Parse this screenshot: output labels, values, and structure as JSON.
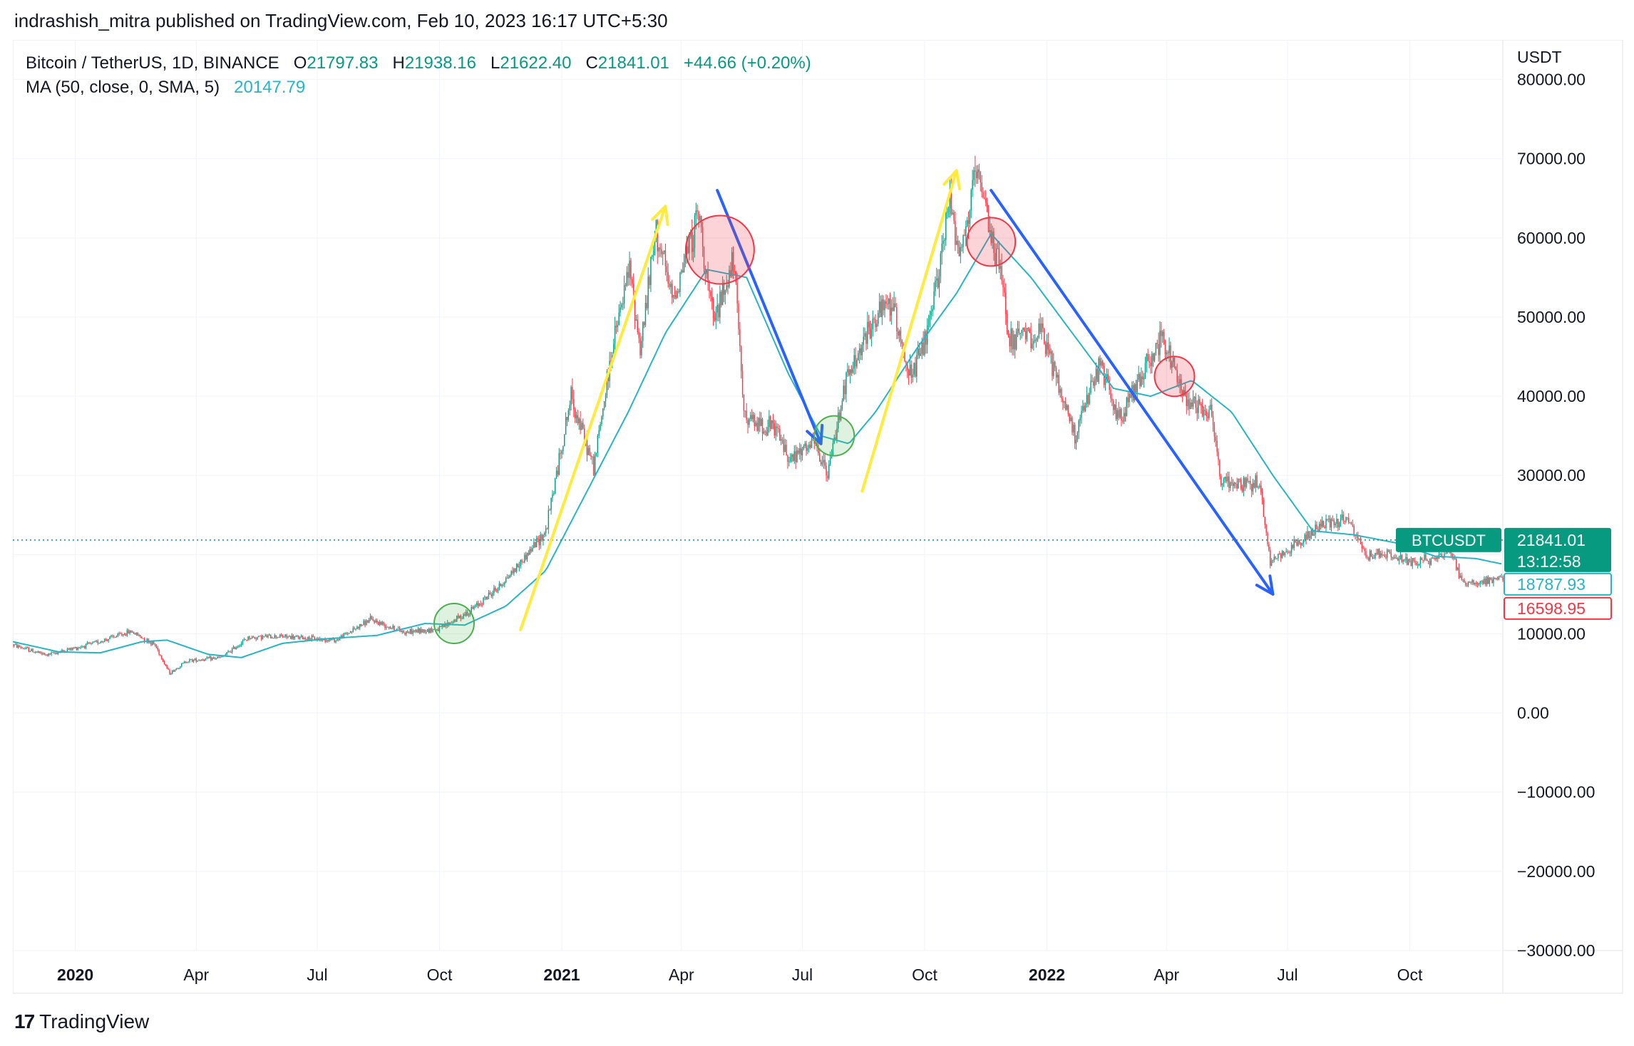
{
  "caption": "indrashish_mitra published on TradingView.com, Feb 10, 2023 16:17 UTC+5:30",
  "footer": {
    "brand": "TradingView",
    "logo_mark": "17"
  },
  "legend": {
    "symbol": "Bitcoin / TetherUS, 1D, BINANCE",
    "open_label": "O",
    "open": "21797.83",
    "high_label": "H",
    "high": "21938.16",
    "low_label": "L",
    "low": "21622.40",
    "close_label": "C",
    "close": "21841.01",
    "change": "+44.66 (+0.20%)",
    "ma_label": "MA (50, close, 0, SMA, 5)",
    "ma_value": "20147.79"
  },
  "colors": {
    "up": "#089981",
    "down": "#f23645",
    "ma": "#26b5c6",
    "yellow_arrow": "#ffeb3b",
    "blue_arrow": "#2962ff"
  },
  "chart_data": {
    "type": "candlestick",
    "currency": "USDT",
    "ylim": [
      -30000,
      85000
    ],
    "yticks": [
      80000,
      70000,
      60000,
      50000,
      40000,
      30000,
      20000,
      10000,
      0,
      -10000,
      -20000,
      -30000
    ],
    "ytick_labels": [
      "80000.00",
      "70000.00",
      "60000.00",
      "50000.00",
      "40000.00",
      "30000.00",
      "20000.00",
      "10000.00",
      "0.00",
      "−10000.00",
      "−20000.00",
      "−30000.00"
    ],
    "xlim": [
      "2019-11-15",
      "2022-12-10"
    ],
    "xticks": [
      {
        "date": "2020-01-01",
        "label": "2020",
        "bold": true
      },
      {
        "date": "2020-04-01",
        "label": "Apr",
        "bold": false
      },
      {
        "date": "2020-07-01",
        "label": "Jul",
        "bold": false
      },
      {
        "date": "2020-10-01",
        "label": "Oct",
        "bold": false
      },
      {
        "date": "2021-01-01",
        "label": "2021",
        "bold": true
      },
      {
        "date": "2021-04-01",
        "label": "Apr",
        "bold": false
      },
      {
        "date": "2021-07-01",
        "label": "Jul",
        "bold": false
      },
      {
        "date": "2021-10-01",
        "label": "Oct",
        "bold": false
      },
      {
        "date": "2022-01-01",
        "label": "2022",
        "bold": true
      },
      {
        "date": "2022-04-01",
        "label": "Apr",
        "bold": false
      },
      {
        "date": "2022-07-01",
        "label": "Jul",
        "bold": false
      },
      {
        "date": "2022-10-01",
        "label": "Oct",
        "bold": false
      }
    ],
    "price_path": [
      [
        "2019-11-15",
        8600
      ],
      [
        "2019-12-10",
        7300
      ],
      [
        "2020-01-15",
        8800
      ],
      [
        "2020-02-12",
        10300
      ],
      [
        "2020-03-01",
        8600
      ],
      [
        "2020-03-12",
        5000
      ],
      [
        "2020-03-25",
        6600
      ],
      [
        "2020-04-20",
        7000
      ],
      [
        "2020-05-10",
        9500
      ],
      [
        "2020-06-01",
        9700
      ],
      [
        "2020-07-15",
        9200
      ],
      [
        "2020-08-10",
        11800
      ],
      [
        "2020-09-05",
        10200
      ],
      [
        "2020-10-01",
        10600
      ],
      [
        "2020-10-25",
        13000
      ],
      [
        "2020-11-15",
        16000
      ],
      [
        "2020-12-01",
        19000
      ],
      [
        "2020-12-20",
        23000
      ],
      [
        "2021-01-08",
        40000
      ],
      [
        "2021-01-25",
        31000
      ],
      [
        "2021-02-08",
        46000
      ],
      [
        "2021-02-21",
        56000
      ],
      [
        "2021-03-01",
        46000
      ],
      [
        "2021-03-13",
        61000
      ],
      [
        "2021-03-25",
        52000
      ],
      [
        "2021-04-14",
        63000
      ],
      [
        "2021-04-25",
        49000
      ],
      [
        "2021-05-10",
        57000
      ],
      [
        "2021-05-19",
        37000
      ],
      [
        "2021-06-10",
        36000
      ],
      [
        "2021-06-22",
        32000
      ],
      [
        "2021-07-10",
        34000
      ],
      [
        "2021-07-20",
        30000
      ],
      [
        "2021-08-01",
        41000
      ],
      [
        "2021-08-22",
        49000
      ],
      [
        "2021-09-06",
        52000
      ],
      [
        "2021-09-21",
        42000
      ],
      [
        "2021-10-05",
        49000
      ],
      [
        "2021-10-20",
        65000
      ],
      [
        "2021-10-28",
        58000
      ],
      [
        "2021-11-09",
        68000
      ],
      [
        "2021-11-28",
        55000
      ],
      [
        "2021-12-04",
        47000
      ],
      [
        "2021-12-28",
        48000
      ],
      [
        "2022-01-22",
        35000
      ],
      [
        "2022-02-10",
        44000
      ],
      [
        "2022-02-24",
        37000
      ],
      [
        "2022-03-28",
        47500
      ],
      [
        "2022-04-15",
        40000
      ],
      [
        "2022-05-05",
        38000
      ],
      [
        "2022-05-12",
        29000
      ],
      [
        "2022-06-10",
        29000
      ],
      [
        "2022-06-18",
        19000
      ],
      [
        "2022-07-08",
        21500
      ],
      [
        "2022-07-30",
        24000
      ],
      [
        "2022-08-15",
        24500
      ],
      [
        "2022-08-28",
        20000
      ],
      [
        "2022-09-15",
        20000
      ],
      [
        "2022-09-25",
        19200
      ],
      [
        "2022-10-15",
        19300
      ],
      [
        "2022-11-01",
        20500
      ],
      [
        "2022-11-09",
        16500
      ],
      [
        "2022-11-25",
        16500
      ],
      [
        "2022-12-10",
        17100
      ]
    ],
    "ma_path": [
      [
        "2019-11-15",
        9000
      ],
      [
        "2019-12-20",
        7700
      ],
      [
        "2020-01-20",
        7600
      ],
      [
        "2020-02-20",
        9000
      ],
      [
        "2020-03-10",
        9200
      ],
      [
        "2020-04-10",
        7400
      ],
      [
        "2020-05-05",
        7000
      ],
      [
        "2020-06-05",
        8800
      ],
      [
        "2020-07-10",
        9400
      ],
      [
        "2020-08-15",
        9800
      ],
      [
        "2020-09-20",
        11300
      ],
      [
        "2020-10-20",
        11100
      ],
      [
        "2020-11-20",
        13500
      ],
      [
        "2020-12-20",
        18000
      ],
      [
        "2021-01-20",
        28000
      ],
      [
        "2021-02-20",
        38000
      ],
      [
        "2021-03-20",
        48000
      ],
      [
        "2021-04-20",
        56000
      ],
      [
        "2021-05-20",
        55000
      ],
      [
        "2021-06-20",
        43000
      ],
      [
        "2021-07-15",
        35000
      ],
      [
        "2021-08-05",
        34000
      ],
      [
        "2021-08-25",
        38000
      ],
      [
        "2021-09-25",
        46000
      ],
      [
        "2021-10-25",
        53000
      ],
      [
        "2021-11-20",
        60500
      ],
      [
        "2021-12-20",
        55000
      ],
      [
        "2022-01-20",
        48000
      ],
      [
        "2022-02-20",
        41000
      ],
      [
        "2022-03-20",
        40000
      ],
      [
        "2022-04-20",
        42000
      ],
      [
        "2022-05-20",
        38000
      ],
      [
        "2022-06-20",
        30000
      ],
      [
        "2022-07-20",
        23000
      ],
      [
        "2022-08-20",
        22500
      ],
      [
        "2022-09-20",
        21500
      ],
      [
        "2022-10-20",
        19800
      ],
      [
        "2022-11-20",
        19500
      ],
      [
        "2022-12-10",
        18788
      ]
    ],
    "last_price_line": 21841.01,
    "price_labels": [
      {
        "text": "BTCUSDT",
        "value": 21841.01,
        "style": "symbol"
      },
      {
        "text": "21841.01",
        "value": 21841.01,
        "style": "last"
      },
      {
        "text": "13:12:58",
        "value": 21841.01,
        "style": "countdown"
      },
      {
        "text": "18787.93",
        "value": 18787.93,
        "style": "ma"
      },
      {
        "text": "16598.95",
        "value": 16598.95,
        "style": "low"
      }
    ],
    "annotations": {
      "yellow_arrows": [
        [
          [
            "2020-12-01",
            10500
          ],
          [
            "2021-03-20",
            64000
          ]
        ],
        [
          [
            "2021-08-15",
            28000
          ],
          [
            "2021-10-25",
            68500
          ]
        ]
      ],
      "blue_arrows": [
        [
          [
            "2021-04-28",
            66000
          ],
          [
            "2021-07-15",
            34000
          ]
        ],
        [
          [
            "2021-11-20",
            66000
          ],
          [
            "2022-06-20",
            15000
          ]
        ]
      ],
      "green_circles": [
        {
          "date": "2020-10-12",
          "value": 11300
        },
        {
          "date": "2021-07-25",
          "value": 35000
        }
      ],
      "red_circles": [
        {
          "date": "2021-04-30",
          "value": 58500,
          "size": "large"
        },
        {
          "date": "2021-11-20",
          "value": 59500,
          "size": "medium"
        },
        {
          "date": "2022-04-07",
          "value": 42500,
          "size": "small"
        }
      ]
    }
  }
}
